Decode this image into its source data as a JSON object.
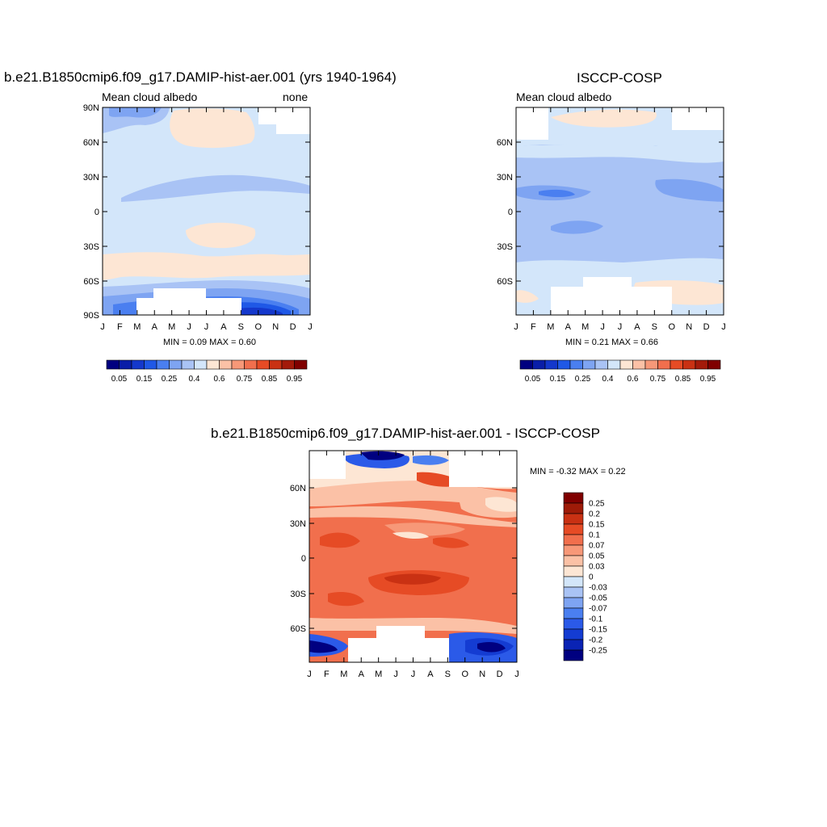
{
  "panels": [
    {
      "title": "b.e21.B1850cmip6.f09_g17.DAMIP-hist-aer.001 (yrs 1940-1964)",
      "left_label": "Mean cloud albedo",
      "right_label": "none",
      "min_max": "MIN =   0.09 MAX =   0.60",
      "lat_ticks": [
        "90N",
        "60N",
        "30N",
        "0",
        "30S",
        "60S",
        "90S"
      ],
      "month_ticks": [
        "J",
        "F",
        "M",
        "A",
        "M",
        "J",
        "J",
        "A",
        "S",
        "O",
        "N",
        "D",
        "J"
      ]
    },
    {
      "title": "ISCCP-COSP",
      "left_label": "Mean cloud albedo",
      "right_label": "",
      "min_max": "MIN =   0.21 MAX =   0.66",
      "lat_ticks": [
        "60N",
        "30N",
        "0",
        "30S",
        "60S"
      ],
      "month_ticks": [
        "J",
        "F",
        "M",
        "A",
        "M",
        "J",
        "J",
        "A",
        "S",
        "O",
        "N",
        "D",
        "J"
      ]
    },
    {
      "title": "b.e21.B1850cmip6.f09_g17.DAMIP-hist-aer.001 - ISCCP-COSP",
      "min_max": "MIN =  -0.32 MAX =   0.22",
      "lat_ticks": [
        "60N",
        "30N",
        "0",
        "30S",
        "60S"
      ],
      "month_ticks": [
        "J",
        "F",
        "M",
        "A",
        "M",
        "J",
        "J",
        "A",
        "S",
        "O",
        "N",
        "D",
        "J"
      ]
    }
  ],
  "colorbar_abs": {
    "colors": [
      "#000080",
      "#0a1ea8",
      "#1438cc",
      "#1f58e6",
      "#4a7ff0",
      "#7ea4f2",
      "#a9c3f5",
      "#d3e6fa",
      "#fde6d4",
      "#fbc1a6",
      "#f79878",
      "#f16f4d",
      "#e64b25",
      "#c93113",
      "#a31a0a",
      "#800000"
    ],
    "labels": [
      "0.05",
      "0.15",
      "0.25",
      "0.4",
      "0.6",
      "0.75",
      "0.85",
      "0.95"
    ]
  },
  "colorbar_diff": {
    "colors": [
      "#000080",
      "#0a23b4",
      "#143cd2",
      "#2b5ae8",
      "#4a7ff0",
      "#7ea4f2",
      "#a9c3f5",
      "#d3e6fa",
      "#fde6d4",
      "#fbc1a6",
      "#f79878",
      "#f16f4d",
      "#e64b25",
      "#c93113",
      "#9e1b08",
      "#800000"
    ],
    "labels": [
      "0.25",
      "0.2",
      "0.15",
      "0.1",
      "0.07",
      "0.05",
      "0.03",
      "0",
      "-0.03",
      "-0.05",
      "-0.07",
      "-0.1",
      "-0.15",
      "-0.2",
      "-0.25"
    ]
  },
  "chart_data": [
    {
      "type": "heatmap",
      "title": "b.e21.B1850cmip6.f09_g17.DAMIP-hist-aer.001 (yrs 1940-1964)",
      "variable": "Mean cloud albedo",
      "units": "none",
      "x": [
        "J",
        "F",
        "M",
        "A",
        "M",
        "J",
        "J",
        "A",
        "S",
        "O",
        "N",
        "D",
        "J"
      ],
      "ylim": [
        "90S",
        "90N"
      ],
      "min": 0.09,
      "max": 0.6,
      "levels": [
        0.05,
        0.1,
        0.15,
        0.2,
        0.25,
        0.3,
        0.4,
        0.5,
        0.6,
        0.65,
        0.75,
        0.8,
        0.85,
        0.9,
        0.95
      ],
      "dominant_values": {
        "tropics": 0.45,
        "subtropics_south": 0.55,
        "arctic_summer": 0.55,
        "south_polar_spring": 0.09
      }
    },
    {
      "type": "heatmap",
      "title": "ISCCP-COSP",
      "variable": "Mean cloud albedo",
      "x": [
        "J",
        "F",
        "M",
        "A",
        "M",
        "J",
        "J",
        "A",
        "S",
        "O",
        "N",
        "D",
        "J"
      ],
      "ylim": [
        "90S",
        "90N"
      ],
      "min": 0.21,
      "max": 0.66,
      "levels": [
        0.05,
        0.1,
        0.15,
        0.2,
        0.25,
        0.3,
        0.4,
        0.5,
        0.6,
        0.65,
        0.75,
        0.8,
        0.85,
        0.9,
        0.95
      ],
      "dominant_values": {
        "tropics": 0.35,
        "itcz": 0.25,
        "arctic_summer": 0.6
      }
    },
    {
      "type": "heatmap",
      "title": "b.e21.B1850cmip6.f09_g17.DAMIP-hist-aer.001 - ISCCP-COSP",
      "x": [
        "J",
        "F",
        "M",
        "A",
        "M",
        "J",
        "J",
        "A",
        "S",
        "O",
        "N",
        "D",
        "J"
      ],
      "ylim": [
        "90S",
        "90N"
      ],
      "min": -0.32,
      "max": 0.22,
      "levels": [
        -0.25,
        -0.2,
        -0.15,
        -0.1,
        -0.07,
        -0.05,
        -0.03,
        0,
        0.03,
        0.05,
        0.07,
        0.1,
        0.15,
        0.2,
        0.25
      ],
      "dominant_values": {
        "tropics": 0.1,
        "south_polar": -0.25,
        "arctic_spring": -0.25
      }
    }
  ]
}
